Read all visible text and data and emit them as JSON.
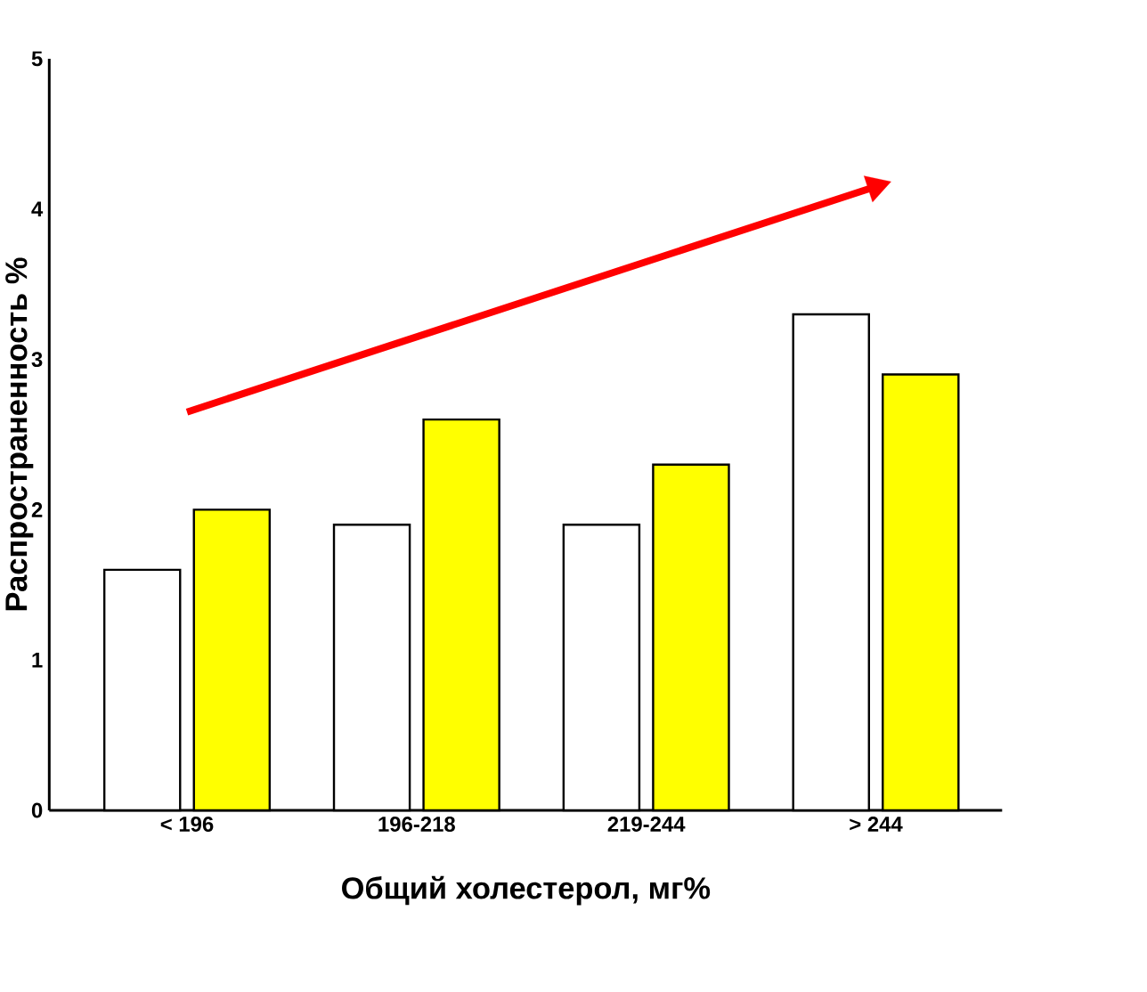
{
  "chart_data": {
    "type": "bar",
    "xlabel": "Общий холестерол, мг%",
    "ylabel": "Распространенность %",
    "categories": [
      "< 196",
      "196-218",
      "219-244",
      "> 244"
    ],
    "series": [
      {
        "color": "#ffffff",
        "values": [
          1.6,
          1.9,
          1.9,
          3.3
        ]
      },
      {
        "color": "#ffff00",
        "values": [
          2.0,
          2.6,
          2.3,
          2.9
        ]
      },
      {
        "type": "line",
        "color": "#ff0000",
        "values": [
          2.65,
          3.15,
          3.65,
          4.15
        ]
      }
    ],
    "ylim": [
      0,
      5
    ],
    "yticks": [
      0,
      1,
      2,
      3,
      4,
      5
    ],
    "grid": false
  }
}
